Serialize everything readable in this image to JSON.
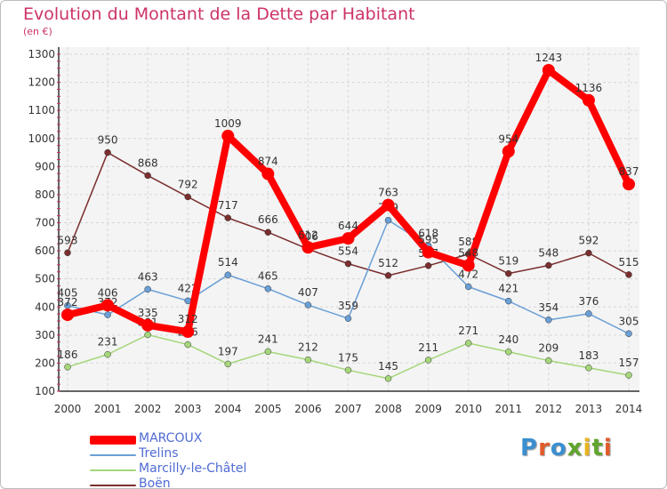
{
  "title": "Evolution du Montant de la Dette par Habitant",
  "unit_label": "(en €)",
  "brand": {
    "text": "Proxiti",
    "letter_colors": [
      "#3a8fd0",
      "#e25a2a",
      "#3a8fd0",
      "#5fa52c",
      "#e8b520",
      "#5fa52c",
      "#e25a2a"
    ]
  },
  "chart_data": {
    "type": "line",
    "x": [
      "2000",
      "2001",
      "2002",
      "2003",
      "2004",
      "2005",
      "2006",
      "2007",
      "2008",
      "2009",
      "2010",
      "2011",
      "2012",
      "2013",
      "2014"
    ],
    "ylim": [
      100,
      1300
    ],
    "yticks": [
      100,
      200,
      300,
      400,
      500,
      600,
      700,
      800,
      900,
      1000,
      1100,
      1200,
      1300
    ],
    "grid": true,
    "legend_position": "bottom-left",
    "series": [
      {
        "name": "MARCOUX",
        "color": "#ff0000",
        "emphasis": true,
        "values": [
          372,
          406,
          335,
          312,
          1009,
          874,
          612,
          644,
          763,
          595,
          548,
          954,
          1243,
          1136,
          837
        ],
        "labels": [
          "372",
          "406",
          "335",
          "312",
          "1009",
          "874",
          "612",
          "644",
          "763",
          "595",
          "548",
          "954",
          "1243",
          "1136",
          "837"
        ]
      },
      {
        "name": "Trelins",
        "color": "#6a9fd6",
        "values": [
          405,
          372,
          463,
          422,
          514,
          465,
          407,
          359,
          709,
          618,
          472,
          421,
          354,
          376,
          305
        ],
        "labels": [
          "405",
          "372",
          "463",
          "422",
          "514",
          "465",
          "407",
          "359",
          "709",
          "618",
          "472",
          "421",
          "354",
          "376",
          "305"
        ]
      },
      {
        "name": "Marcilly-le-Châtel",
        "color": "#a5d67a",
        "values": [
          186,
          231,
          301,
          266,
          197,
          241,
          212,
          175,
          145,
          211,
          271,
          240,
          209,
          183,
          157
        ],
        "labels": [
          "186",
          "231",
          "301",
          "266",
          "197",
          "241",
          "212",
          "175",
          "145",
          "211",
          "271",
          "240",
          "209",
          "183",
          "157"
        ]
      },
      {
        "name": "Boën",
        "color": "#7a2e2e",
        "values": [
          593,
          950,
          868,
          792,
          717,
          666,
          606,
          554,
          512,
          547,
          588,
          519,
          548,
          592,
          515
        ],
        "labels": [
          "593",
          "950",
          "868",
          "792",
          "717",
          "666",
          "606",
          "554",
          "512",
          "547",
          "588",
          "519",
          "548",
          "592",
          "515"
        ]
      }
    ]
  }
}
